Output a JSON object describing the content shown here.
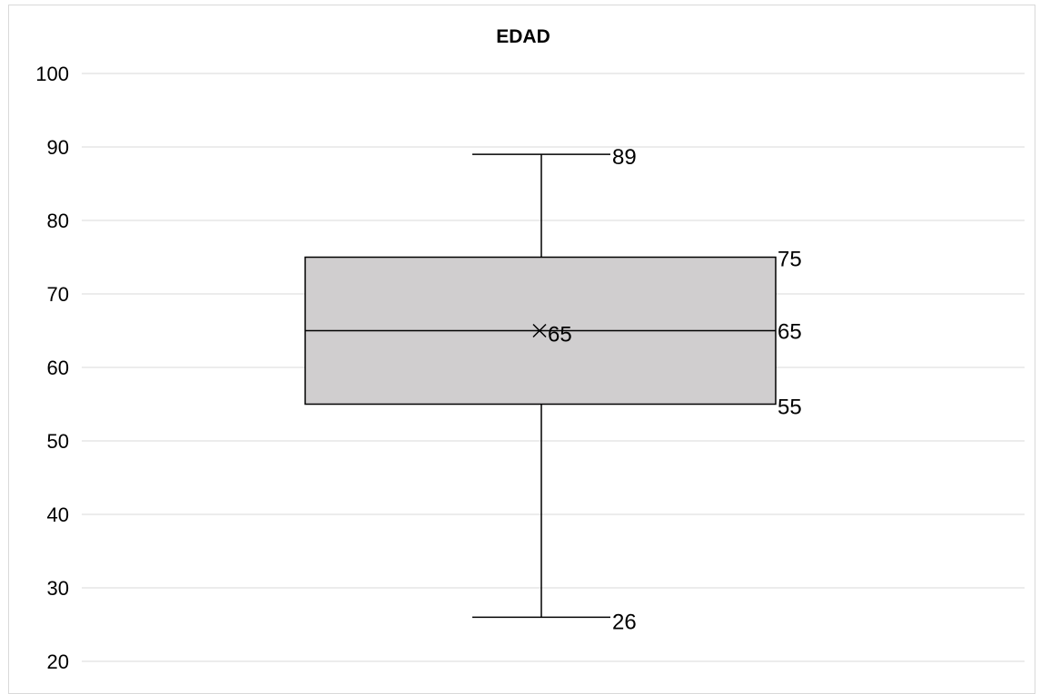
{
  "chart_data": {
    "type": "box",
    "title": "EDAD",
    "xlabel": "",
    "ylabel": "",
    "ylim": [
      20,
      100
    ],
    "yticks": [
      20,
      30,
      40,
      50,
      60,
      70,
      80,
      90,
      100
    ],
    "grid": true,
    "legend": "none",
    "box": {
      "min": 26,
      "q1": 55,
      "median": 65,
      "q3": 75,
      "max": 89,
      "mean": 65
    },
    "data_labels": {
      "min": "26",
      "q1": "55",
      "median": "65",
      "q3": "75",
      "max": "89",
      "mean": "65"
    },
    "colors": {
      "box_fill": "#d0cecf",
      "lines": "#000000",
      "grid": "#d9d9d9"
    }
  }
}
